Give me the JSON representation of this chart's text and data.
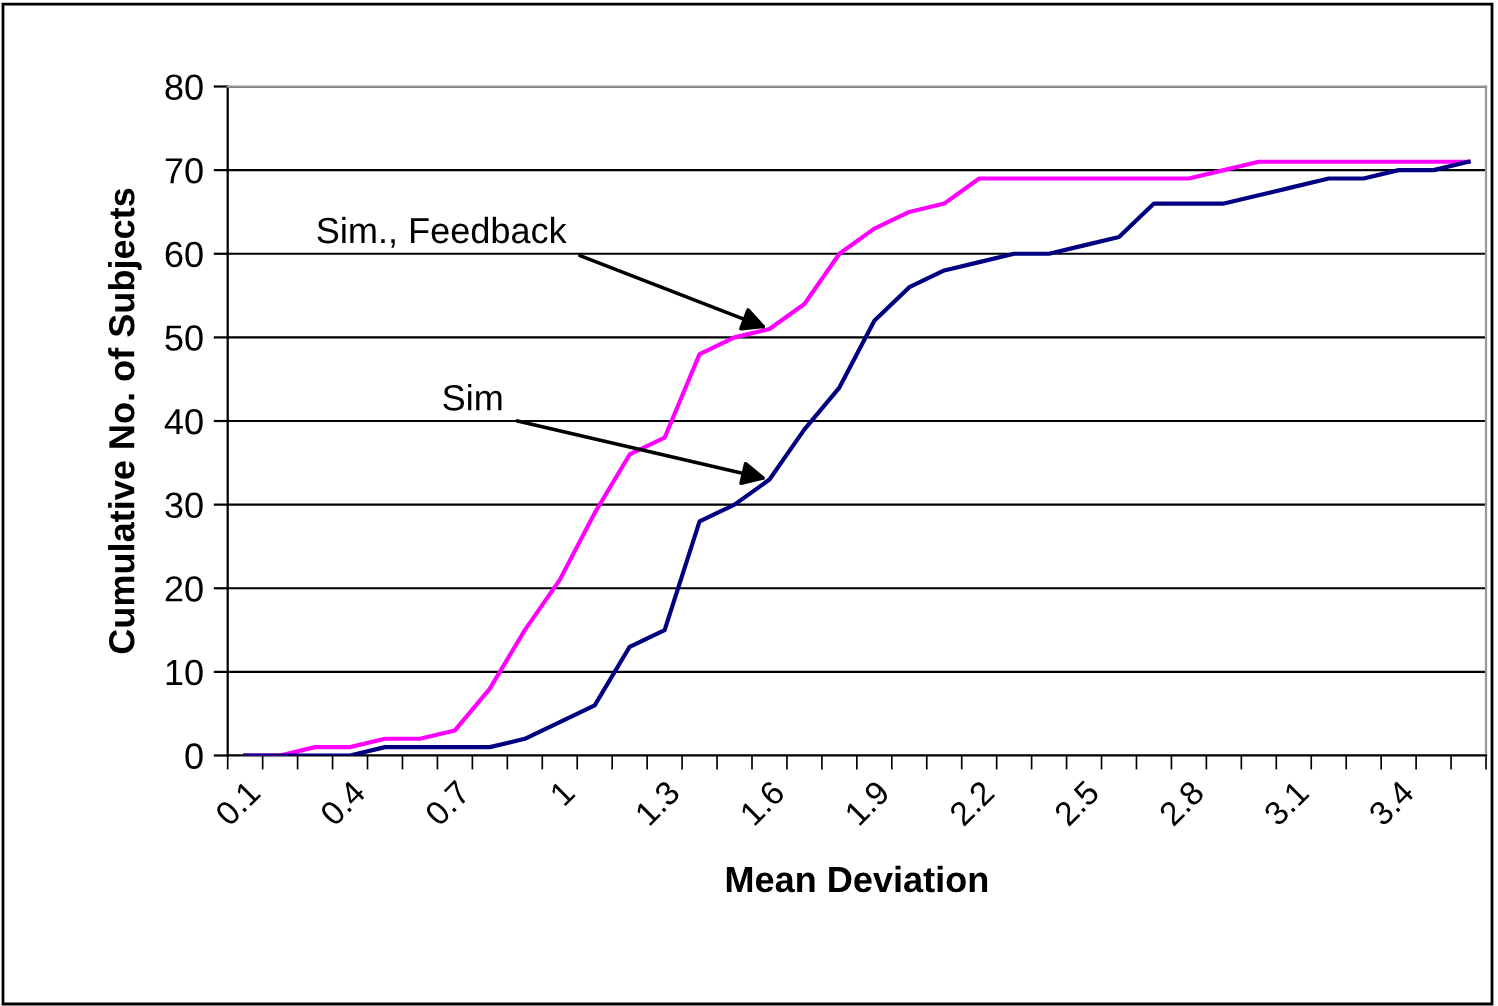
{
  "chart_data": {
    "type": "line",
    "xlabel": "Mean Deviation",
    "ylabel": "Cumulative No. of Subjects",
    "categories": [
      "0.1",
      null,
      null,
      "0.4",
      null,
      null,
      "0.7",
      null,
      null,
      "1",
      null,
      null,
      "1.3",
      null,
      null,
      "1.6",
      null,
      null,
      "1.9",
      null,
      null,
      "2.2",
      null,
      null,
      "2.5",
      null,
      null,
      "2.8",
      null,
      null,
      "3.1",
      null,
      null,
      "3.4",
      null,
      null
    ],
    "series": [
      {
        "color": "#ff00ff",
        "values": [
          0,
          0,
          1,
          1,
          2,
          2,
          3,
          8,
          15,
          21,
          29,
          36,
          38,
          48,
          50,
          51,
          54,
          60,
          63,
          65,
          66,
          69,
          69,
          69,
          69,
          69,
          69,
          69,
          70,
          71,
          71,
          71,
          71,
          71,
          71,
          71
        ]
      },
      {
        "color": "#000080",
        "values": [
          0,
          0,
          0,
          0,
          1,
          1,
          1,
          1,
          2,
          4,
          6,
          13,
          15,
          28,
          30,
          33,
          39,
          44,
          52,
          56,
          58,
          59,
          60,
          60,
          61,
          62,
          66,
          66,
          66,
          67,
          68,
          69,
          69,
          70,
          70,
          71
        ]
      }
    ],
    "annotations": [
      {
        "text": "Sim., Feedback",
        "x": "1.6",
        "y": 51
      },
      {
        "text": "Sim",
        "x": "1.6",
        "y": 33
      }
    ],
    "ylim": [
      0,
      80
    ],
    "yticks": [
      0,
      10,
      20,
      30,
      40,
      50,
      60,
      70,
      80
    ],
    "grid": "y",
    "legend": false,
    "marker": "none",
    "line_style": "solid"
  }
}
